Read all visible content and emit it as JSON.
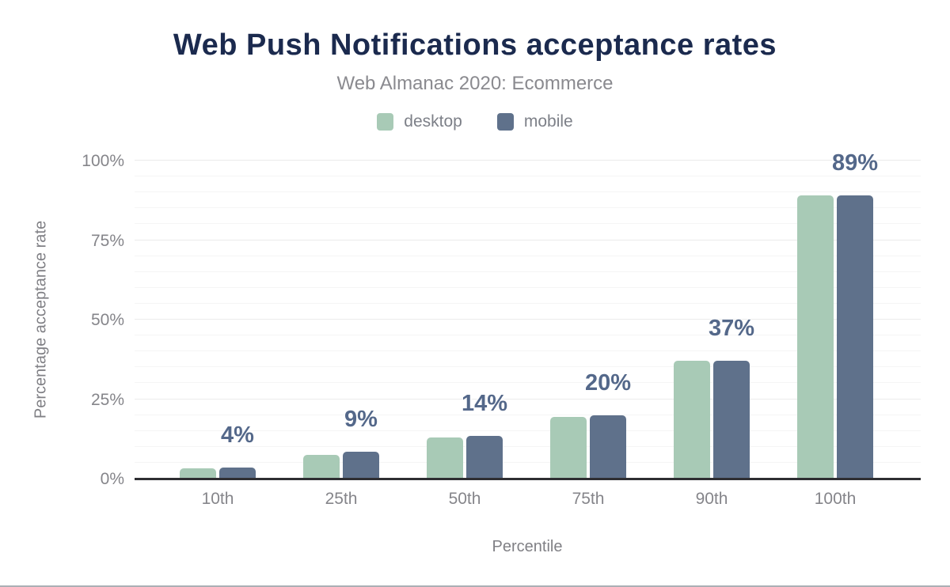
{
  "page": {
    "background": "#ffffff",
    "bottom_border_color": "#abafb5"
  },
  "header": {
    "title": "Web Push Notifications acceptance rates",
    "subtitle": "Web Almanac 2020: Ecommerce"
  },
  "legend": {
    "position": "top-center",
    "items": [
      {
        "label": "desktop",
        "color": "#a8cab6"
      },
      {
        "label": "mobile",
        "color": "#5f718b"
      }
    ]
  },
  "chart_data": {
    "type": "bar",
    "title": "Web Push Notifications acceptance rates",
    "subtitle": "Web Almanac 2020: Ecommerce",
    "categories": [
      "10th",
      "25th",
      "50th",
      "75th",
      "90th",
      "100th"
    ],
    "series": [
      {
        "name": "desktop",
        "color": "#a8cab6",
        "values": [
          3.2,
          7.5,
          12.9,
          19.3,
          37,
          89
        ]
      },
      {
        "name": "mobile",
        "color": "#5f718b",
        "values": [
          3.5,
          8.5,
          13.5,
          20,
          37,
          89
        ]
      }
    ],
    "bar_labels": [
      "4%",
      "9%",
      "14%",
      "20%",
      "37%",
      "89%"
    ],
    "bar_label_series": "mobile",
    "xlabel": "Percentile",
    "ylabel": "Percentage acceptance rate",
    "y_ticks": [
      "0%",
      "25%",
      "50%",
      "75%",
      "100%"
    ],
    "ylim": [
      0,
      100
    ],
    "grid": "horizontal lines every 5%",
    "legend_position": "top"
  },
  "colors": {
    "title": "#1b2a4e",
    "subtitle": "#8a8a8f",
    "bar_label": "#54688a",
    "axis_line": "#2e2e32",
    "tick_text": "#85858a",
    "gridline_minor": "#f5f5f5",
    "gridline_major": "#ebebeb"
  }
}
